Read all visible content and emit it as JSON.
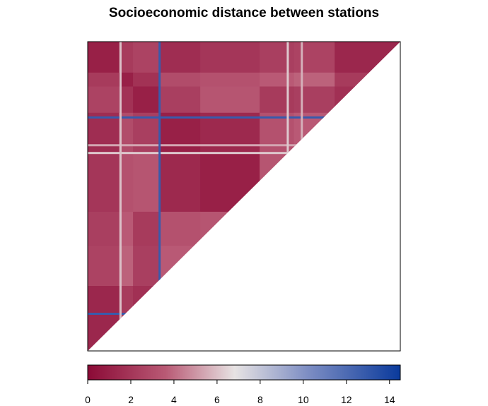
{
  "chart_data": {
    "type": "heatmap",
    "title": "Socioeconomic distance between stations",
    "matrix_shape": "lower-triangular",
    "colorbar": {
      "min": 0,
      "max": 14.5,
      "ticks": [
        0,
        2,
        4,
        6,
        8,
        10,
        12,
        14
      ],
      "tick_labels": [
        "0",
        "2",
        "4",
        "6",
        "8",
        "10",
        "12",
        "14"
      ],
      "palette": [
        "#8b0a36",
        "#b95a75",
        "#e7e3e3",
        "#7f8fc4",
        "#0a3a9c"
      ]
    },
    "approx_blocks": {
      "boundaries": [
        0,
        0.1,
        0.145,
        0.23,
        0.36,
        0.55,
        0.66,
        0.79,
        1.0
      ],
      "values": [
        [
          null,
          null,
          null,
          null,
          null,
          null,
          null,
          null
        ],
        [
          2.2,
          null,
          null,
          null,
          null,
          null,
          null,
          null
        ],
        [
          2.6,
          1.8,
          null,
          null,
          null,
          null,
          null,
          null
        ],
        [
          1.6,
          3.0,
          2.4,
          null,
          null,
          null,
          null,
          null
        ],
        [
          2.0,
          3.2,
          3.4,
          1.4,
          null,
          null,
          null,
          null
        ],
        [
          2.4,
          3.6,
          2.2,
          3.2,
          3.4,
          null,
          null,
          null
        ],
        [
          2.6,
          3.8,
          2.4,
          3.6,
          3.6,
          1.2,
          null,
          null
        ],
        [
          1.3,
          2.2,
          1.7,
          2.8,
          2.6,
          1.0,
          0.8,
          null
        ]
      ]
    },
    "notable_lines": [
      {
        "row": 0.36,
        "value": 6.2
      },
      {
        "row": 0.335,
        "value": 5.4
      },
      {
        "row": 0.88,
        "value": 12.8
      },
      {
        "row": 0.245,
        "value": 12.8
      },
      {
        "col": 0.105,
        "value": 6.0
      },
      {
        "col": 0.23,
        "value": 12.8
      },
      {
        "col": 0.64,
        "value": 6.2
      },
      {
        "col": 0.685,
        "value": 5.6
      }
    ]
  }
}
